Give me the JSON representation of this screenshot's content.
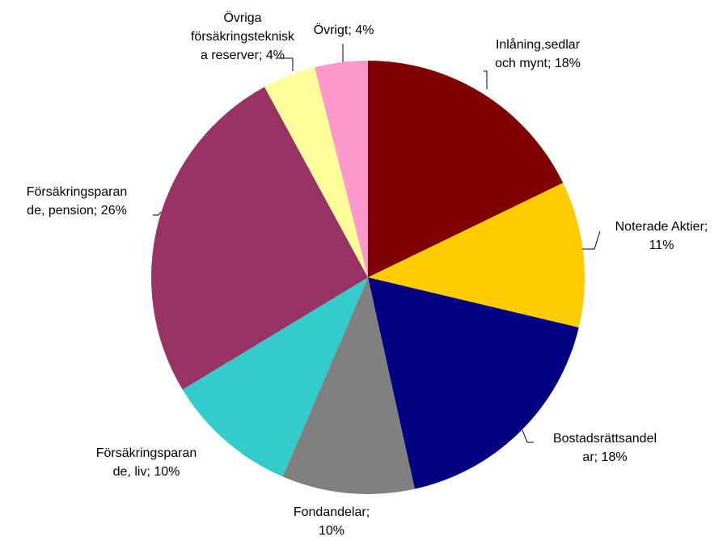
{
  "chart_data": {
    "type": "pie",
    "values": [
      18,
      11,
      18,
      10,
      10,
      26,
      4,
      4
    ],
    "value_labels": [
      [
        "Inlåning,sedlar",
        "och mynt; 18%"
      ],
      [
        "Noterade Aktier;",
        "11%"
      ],
      [
        "Bostadsrättsandel",
        "ar; 18%"
      ],
      [
        "Fondandelar;",
        "10%"
      ],
      [
        "Försäkringsparan",
        "de, liv; 10%"
      ],
      [
        "Försäkringsparan",
        "de, pension; 26%"
      ],
      [
        "Övriga",
        "försäkringsteknisk",
        "a reserver; 4%"
      ],
      [
        "Övrigt; 4%"
      ]
    ],
    "colors": [
      "#800000",
      "#FFCC00",
      "#000080",
      "#808080",
      "#33CCCC",
      "#993366",
      "#FFFF99",
      "#FF99CC"
    ]
  }
}
